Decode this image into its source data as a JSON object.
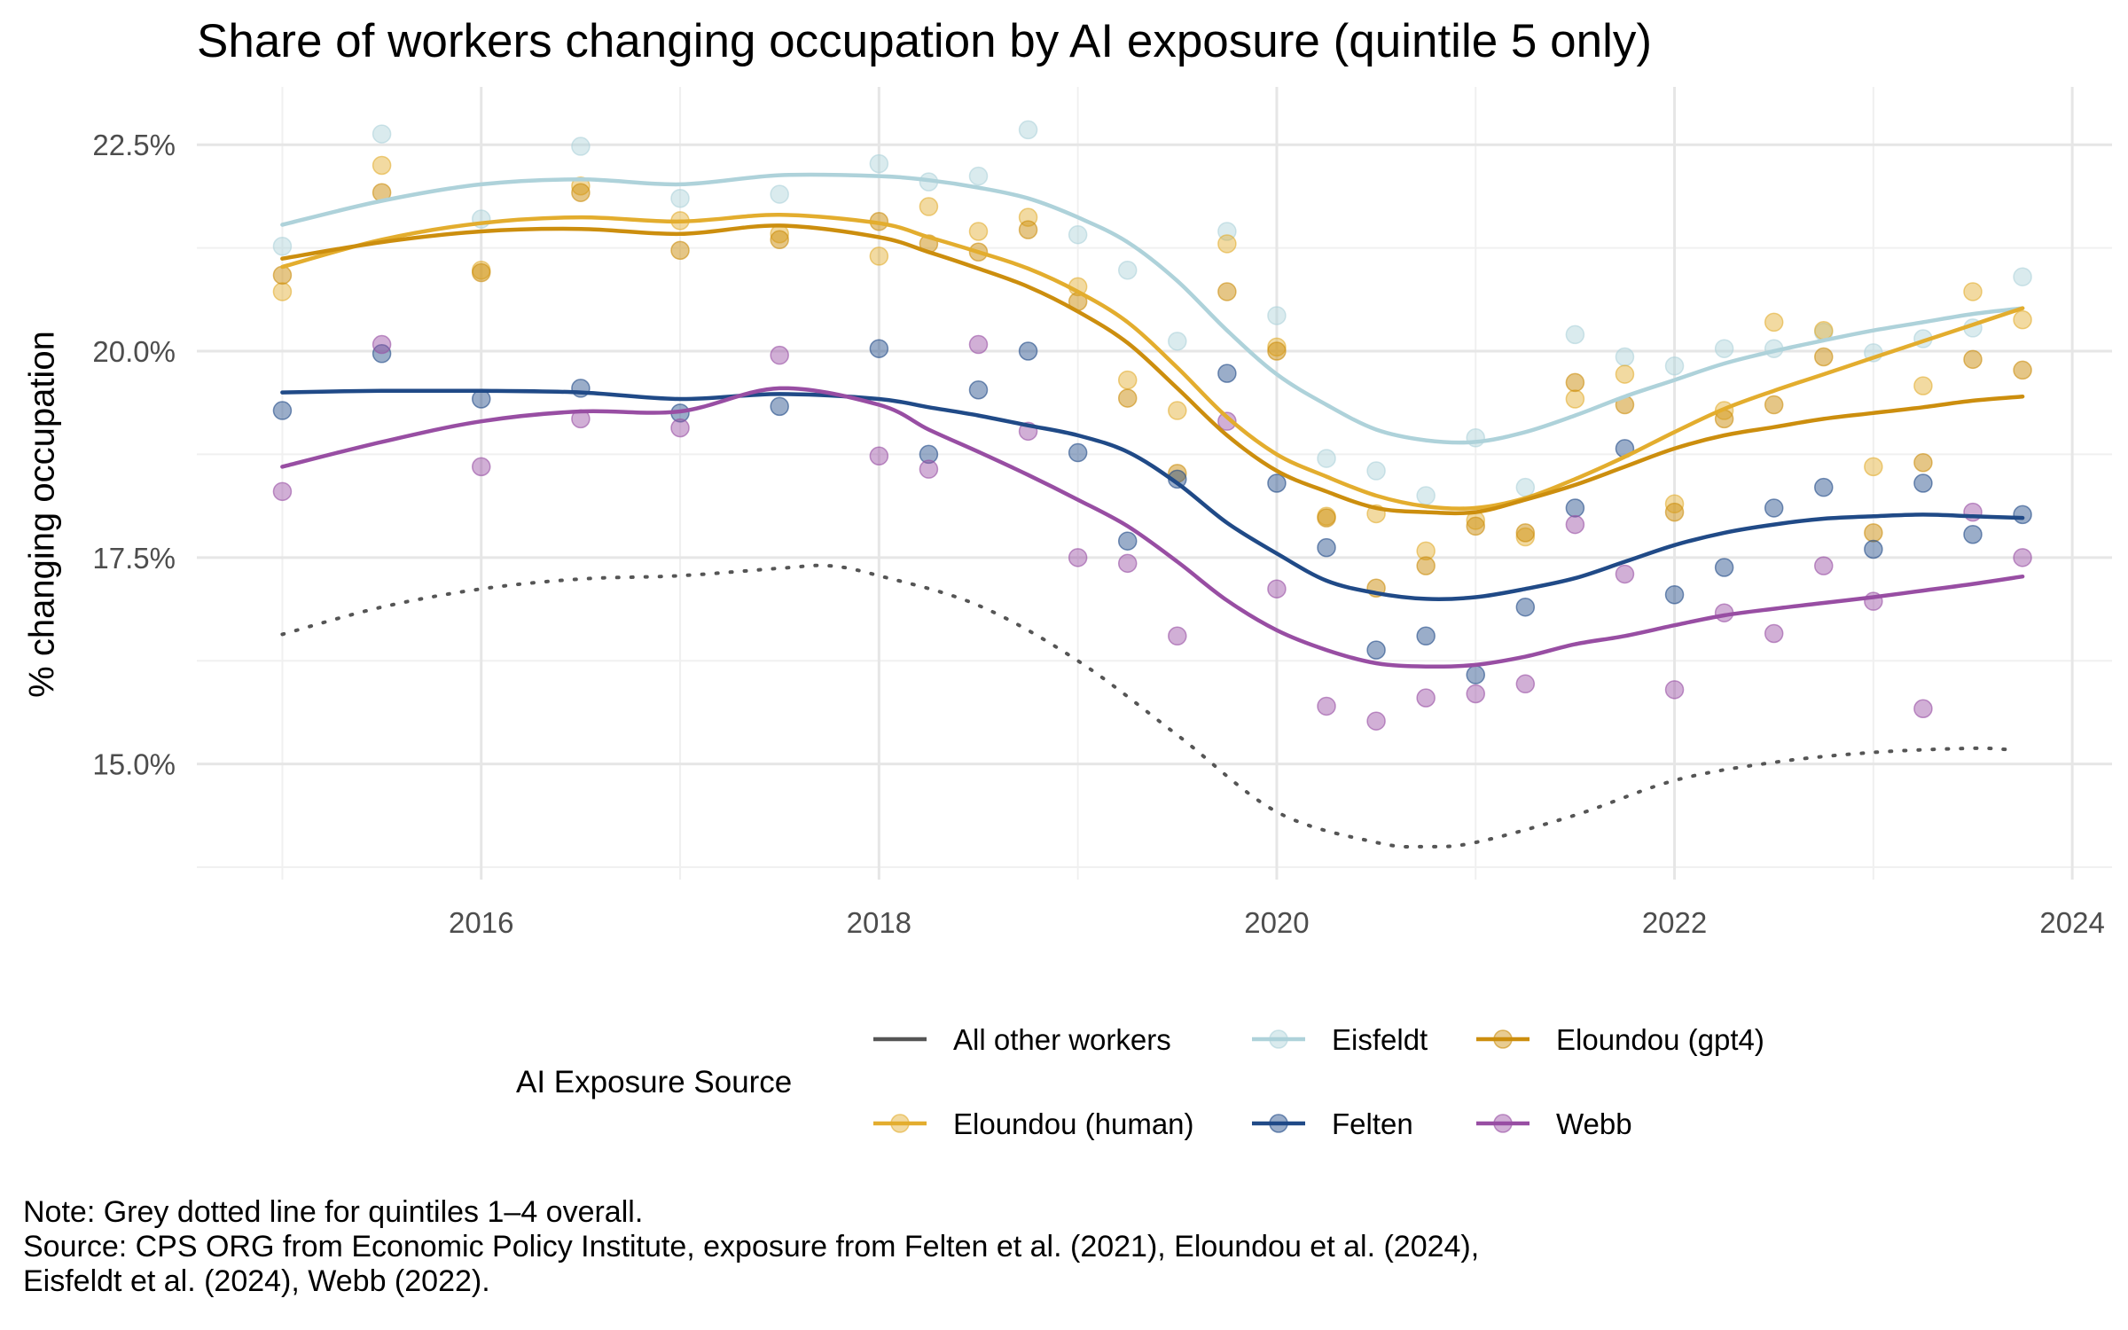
{
  "chart_data": {
    "type": "line",
    "title": "Share of workers changing occupation by AI exposure (quintile 5 only)",
    "xlabel": "",
    "ylabel": "% changing occupation",
    "x_ticks": [
      "2016",
      "2018",
      "2020",
      "2022",
      "2024"
    ],
    "y_ticks": [
      "15.0%",
      "17.5%",
      "20.0%",
      "22.5%"
    ],
    "xlim": [
      2014.57,
      2024.2
    ],
    "ylim": [
      13.6,
      23.2
    ],
    "grid": true,
    "legend_title": "AI Exposure Source",
    "legend_position": "bottom",
    "legend_entries": [
      "All other workers",
      "Eisfeldt",
      "Eloundou (gpt4)",
      "Eloundou (human)",
      "Felten",
      "Webb"
    ],
    "reference_line": {
      "name": "All other workers",
      "color": "#555555",
      "style": "dotted",
      "x": [
        2015.0,
        2015.5,
        2016.0,
        2016.5,
        2017.0,
        2017.5,
        2017.75,
        2018.0,
        2018.5,
        2019.0,
        2019.5,
        2020.0,
        2020.5,
        2020.75,
        2021.0,
        2021.5,
        2022.0,
        2022.5,
        2023.0,
        2023.5,
        2023.7
      ],
      "y": [
        16.57,
        16.9,
        17.12,
        17.24,
        17.28,
        17.37,
        17.4,
        17.28,
        16.92,
        16.25,
        15.35,
        14.42,
        14.05,
        14.0,
        14.05,
        14.38,
        14.8,
        15.02,
        15.14,
        15.19,
        15.17
      ]
    },
    "series": [
      {
        "name": "Eisfeldt",
        "color": "#aed2da",
        "x": [
          2015.0,
          2015.5,
          2016.0,
          2016.5,
          2017.0,
          2017.5,
          2018.0,
          2018.25,
          2018.5,
          2018.75,
          2019.0,
          2019.25,
          2019.5,
          2019.75,
          2020.0,
          2020.25,
          2020.5,
          2020.75,
          2021.0,
          2021.25,
          2021.5,
          2021.75,
          2022.0,
          2022.25,
          2022.5,
          2022.75,
          2023.0,
          2023.25,
          2023.5,
          2023.75
        ],
        "y": [
          21.27,
          22.63,
          21.6,
          22.48,
          21.85,
          21.9,
          22.27,
          22.05,
          22.12,
          22.68,
          21.41,
          20.98,
          20.12,
          21.45,
          20.43,
          18.7,
          18.55,
          18.25,
          18.95,
          18.35,
          20.2,
          19.93,
          19.82,
          20.03,
          20.03,
          20.23,
          19.98,
          20.15,
          20.28,
          20.9
        ],
        "smooth": [
          21.53,
          21.82,
          22.02,
          22.08,
          22.02,
          22.13,
          22.12,
          22.07,
          21.98,
          21.85,
          21.62,
          21.32,
          20.85,
          20.25,
          19.72,
          19.35,
          19.05,
          18.92,
          18.9,
          19.02,
          19.22,
          19.45,
          19.65,
          19.85,
          20.0,
          20.13,
          20.25,
          20.35,
          20.45,
          20.52
        ]
      },
      {
        "name": "Eloundou (human)",
        "color": "#e3ad2e",
        "x": [
          2015.0,
          2015.5,
          2016.0,
          2016.5,
          2017.0,
          2017.5,
          2018.0,
          2018.25,
          2018.5,
          2018.75,
          2019.0,
          2019.25,
          2019.5,
          2019.75,
          2020.0,
          2020.25,
          2020.5,
          2020.75,
          2021.0,
          2021.25,
          2021.5,
          2021.75,
          2022.0,
          2022.25,
          2022.5,
          2022.75,
          2023.0,
          2023.25,
          2023.5,
          2023.75
        ],
        "y": [
          20.72,
          22.25,
          20.98,
          22.0,
          21.58,
          21.42,
          21.15,
          21.75,
          21.45,
          21.62,
          20.78,
          19.65,
          19.28,
          21.3,
          20.05,
          18.0,
          18.03,
          17.58,
          17.95,
          17.75,
          19.42,
          19.72,
          18.15,
          19.28,
          20.35,
          20.25,
          18.6,
          19.58,
          20.72,
          20.38
        ],
        "smooth": [
          21.02,
          21.35,
          21.55,
          21.62,
          21.57,
          21.65,
          21.55,
          21.38,
          21.2,
          21.0,
          20.72,
          20.35,
          19.8,
          19.2,
          18.75,
          18.48,
          18.25,
          18.12,
          18.1,
          18.22,
          18.45,
          18.72,
          19.02,
          19.3,
          19.52,
          19.72,
          19.92,
          20.12,
          20.32,
          20.52
        ]
      },
      {
        "name": "Eloundou (gpt4)",
        "color": "#cc8e0e",
        "x": [
          2015.0,
          2015.5,
          2016.0,
          2016.5,
          2017.0,
          2017.5,
          2018.0,
          2018.25,
          2018.5,
          2018.75,
          2019.0,
          2019.25,
          2019.5,
          2019.75,
          2020.0,
          2020.25,
          2020.5,
          2020.75,
          2021.0,
          2021.25,
          2021.5,
          2021.75,
          2022.0,
          2022.25,
          2022.5,
          2022.75,
          2023.0,
          2023.25,
          2023.5,
          2023.75
        ],
        "y": [
          20.92,
          21.92,
          20.95,
          21.92,
          21.22,
          21.35,
          21.57,
          21.3,
          21.2,
          21.47,
          20.6,
          19.43,
          18.52,
          20.72,
          20.0,
          17.98,
          17.13,
          17.4,
          17.88,
          17.8,
          19.62,
          19.35,
          18.05,
          19.18,
          19.35,
          19.93,
          17.8,
          18.65,
          19.9,
          19.77
        ],
        "smooth": [
          21.12,
          21.32,
          21.45,
          21.48,
          21.42,
          21.52,
          21.38,
          21.2,
          21.0,
          20.78,
          20.48,
          20.1,
          19.55,
          18.98,
          18.55,
          18.3,
          18.1,
          18.05,
          18.05,
          18.2,
          18.38,
          18.6,
          18.82,
          18.98,
          19.08,
          19.18,
          19.25,
          19.32,
          19.4,
          19.45
        ]
      },
      {
        "name": "Felten",
        "color": "#204a87",
        "x": [
          2015.0,
          2015.5,
          2016.0,
          2016.5,
          2017.0,
          2017.5,
          2018.0,
          2018.25,
          2018.5,
          2018.75,
          2019.0,
          2019.25,
          2019.5,
          2019.75,
          2020.0,
          2020.25,
          2020.5,
          2020.75,
          2021.0,
          2021.25,
          2021.5,
          2021.75,
          2022.0,
          2022.25,
          2022.5,
          2022.75,
          2023.0,
          2023.25,
          2023.5,
          2023.75
        ],
        "y": [
          19.28,
          19.97,
          19.42,
          19.55,
          19.25,
          19.33,
          20.03,
          18.75,
          19.53,
          20.0,
          18.77,
          17.7,
          18.45,
          19.73,
          18.4,
          17.62,
          16.38,
          16.55,
          16.08,
          16.9,
          18.1,
          18.82,
          17.05,
          17.38,
          18.1,
          18.35,
          17.6,
          18.4,
          17.78,
          18.02
        ],
        "smooth": [
          19.5,
          19.52,
          19.52,
          19.5,
          19.42,
          19.48,
          19.42,
          19.32,
          19.22,
          19.1,
          18.98,
          18.78,
          18.4,
          17.92,
          17.55,
          17.22,
          17.07,
          17.0,
          17.02,
          17.12,
          17.25,
          17.45,
          17.65,
          17.8,
          17.9,
          17.97,
          18.0,
          18.02,
          18.0,
          17.98
        ]
      },
      {
        "name": "Webb",
        "color": "#984ea3",
        "x": [
          2015.0,
          2015.5,
          2016.0,
          2016.5,
          2017.0,
          2017.5,
          2018.0,
          2018.25,
          2018.5,
          2018.75,
          2019.0,
          2019.25,
          2019.5,
          2019.75,
          2020.0,
          2020.25,
          2020.5,
          2020.75,
          2021.0,
          2021.25,
          2021.5,
          2021.75,
          2022.0,
          2022.25,
          2022.5,
          2022.75,
          2023.0,
          2023.25,
          2023.5,
          2023.75
        ],
        "y": [
          18.3,
          20.08,
          18.6,
          19.18,
          19.07,
          19.95,
          18.73,
          18.57,
          20.08,
          19.03,
          17.5,
          17.43,
          16.55,
          19.15,
          17.12,
          15.7,
          15.52,
          15.8,
          15.85,
          15.97,
          17.9,
          17.3,
          15.9,
          16.83,
          16.58,
          17.4,
          16.97,
          15.67,
          18.05,
          17.5
        ],
        "smooth": [
          18.6,
          18.9,
          19.15,
          19.27,
          19.27,
          19.55,
          19.35,
          19.05,
          18.78,
          18.5,
          18.2,
          17.88,
          17.45,
          16.98,
          16.62,
          16.38,
          16.22,
          16.18,
          16.2,
          16.3,
          16.45,
          16.55,
          16.68,
          16.8,
          16.88,
          16.95,
          17.02,
          17.1,
          17.18,
          17.27
        ]
      }
    ]
  },
  "note_lines": [
    "Note: Grey dotted line for quintiles 1–4 overall.",
    "Source: CPS ORG from Economic Policy Institute, exposure from Felten et al. (2021), Eloundou et al. (2024),",
    "Eisfeldt et al. (2024), Webb (2022)."
  ]
}
